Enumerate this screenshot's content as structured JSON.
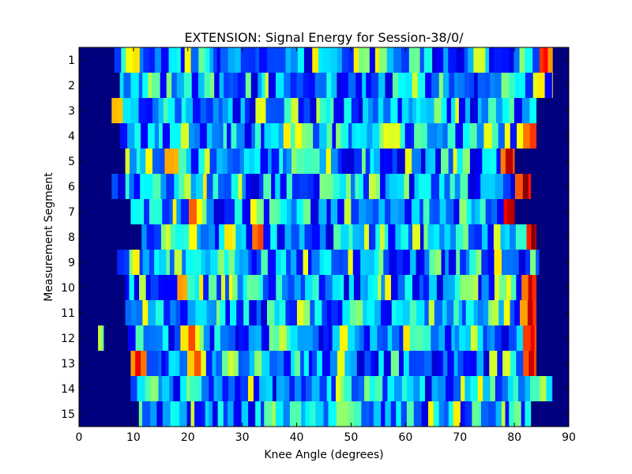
{
  "chart_data": {
    "type": "heatmap",
    "title": "EXTENSION: Signal Energy for Session-38/0/",
    "xlabel": "Knee Angle (degrees)",
    "ylabel": "Measurement Segment",
    "xlim": [
      0,
      90
    ],
    "x_ticks": [
      "0",
      "10",
      "20",
      "30",
      "40",
      "50",
      "60",
      "70",
      "80",
      "90"
    ],
    "y_ticks": [
      "1",
      "2",
      "3",
      "4",
      "5",
      "6",
      "7",
      "8",
      "9",
      "10",
      "11",
      "12",
      "13",
      "14",
      "15"
    ],
    "colormap": "jet",
    "background_color": "#00007f",
    "value_range": [
      0,
      1
    ],
    "bin_width_degrees": 1,
    "grid": false,
    "legend": "none",
    "rows": [
      {
        "segment": "1",
        "x_start": 6.5,
        "x_end": 87.0
      },
      {
        "segment": "2",
        "x_start": 7.5,
        "x_end": 87.0
      },
      {
        "segment": "3",
        "x_start": 6.0,
        "x_end": 84.0
      },
      {
        "segment": "4",
        "x_start": 7.5,
        "x_end": 84.0
      },
      {
        "segment": "5",
        "x_start": 8.5,
        "x_end": 80.0
      },
      {
        "segment": "6",
        "x_start": 6.0,
        "x_end": 83.0
      },
      {
        "segment": "7",
        "x_start": 9.5,
        "x_end": 80.0
      },
      {
        "segment": "8",
        "x_start": 11.5,
        "x_end": 84.0
      },
      {
        "segment": "9",
        "x_start": 7.0,
        "x_end": 84.5
      },
      {
        "segment": "10",
        "x_start": 8.5,
        "x_end": 84.0
      },
      {
        "segment": "11",
        "x_start": 8.5,
        "x_end": 84.0
      },
      {
        "segment": "12",
        "x_start": 9.0,
        "x_end": 84.0,
        "extra_segments": [
          [
            3.5,
            4.5
          ]
        ]
      },
      {
        "segment": "13",
        "x_start": 9.5,
        "x_end": 84.0
      },
      {
        "segment": "14",
        "x_start": 9.5,
        "x_end": 87.0
      },
      {
        "segment": "15",
        "x_start": 11.0,
        "x_end": 83.0
      }
    ],
    "hotspots": [
      {
        "segment": "1",
        "x": 85.5,
        "value": 0.92
      },
      {
        "segment": "1",
        "x": 10.0,
        "value": 0.75
      },
      {
        "segment": "3",
        "x": 7.0,
        "value": 0.78
      },
      {
        "segment": "4",
        "x": 83.0,
        "value": 0.9
      },
      {
        "segment": "5",
        "x": 17.0,
        "value": 0.82
      },
      {
        "segment": "5",
        "x": 79.0,
        "value": 0.95
      },
      {
        "segment": "6",
        "x": 82.0,
        "value": 1.0
      },
      {
        "segment": "7",
        "x": 21.0,
        "value": 0.8
      },
      {
        "segment": "7",
        "x": 79.0,
        "value": 1.0
      },
      {
        "segment": "8",
        "x": 33.0,
        "value": 0.88
      },
      {
        "segment": "8",
        "x": 83.5,
        "value": 1.0
      },
      {
        "segment": "10",
        "x": 19.0,
        "value": 0.8
      },
      {
        "segment": "10",
        "x": 83.0,
        "value": 0.95
      },
      {
        "segment": "11",
        "x": 83.0,
        "value": 0.95
      },
      {
        "segment": "12",
        "x": 20.5,
        "value": 0.85
      },
      {
        "segment": "12",
        "x": 83.0,
        "value": 0.95
      },
      {
        "segment": "13",
        "x": 11.0,
        "value": 0.92
      },
      {
        "segment": "13",
        "x": 21.5,
        "value": 0.85
      },
      {
        "segment": "13",
        "x": 83.0,
        "value": 0.95
      },
      {
        "segment": "14",
        "x": 85.0,
        "value": 0.6
      },
      {
        "segment": "15",
        "x": 35.5,
        "value": 0.6
      }
    ]
  }
}
